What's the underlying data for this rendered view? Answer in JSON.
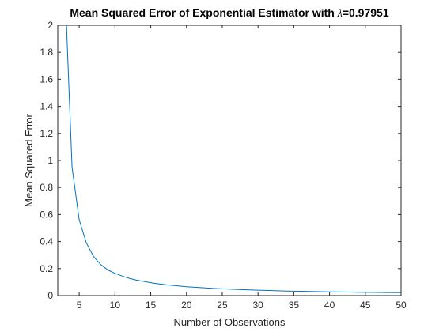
{
  "chart_data": {
    "type": "line",
    "title_prefix": "Mean Squared Error of Exponential Estimator with ",
    "title_symbol": "λ",
    "title_suffix": "=0.97951",
    "xlabel": "Number of Observations",
    "ylabel": "Mean Squared Error",
    "xlim": [
      2,
      50
    ],
    "ylim": [
      0,
      2
    ],
    "xticks": [
      5,
      10,
      15,
      20,
      25,
      30,
      35,
      40,
      45,
      50
    ],
    "yticks": [
      0,
      0.2,
      0.4,
      0.6,
      0.8,
      1,
      1.2,
      1.4,
      1.6,
      1.8,
      2
    ],
    "ytick_labels": [
      "0",
      "0.2",
      "0.4",
      "0.6",
      "0.8",
      "1",
      "1.2",
      "1.4",
      "1.6",
      "1.8",
      "2"
    ],
    "grid": false,
    "series": [
      {
        "color": "#0072bd",
        "x": [
          3,
          4,
          5,
          6,
          7,
          8,
          9,
          10,
          11,
          12,
          13,
          14,
          15,
          16,
          17,
          18,
          19,
          20,
          22,
          24,
          26,
          28,
          30,
          32,
          34,
          36,
          38,
          40,
          42,
          44,
          46,
          48,
          50
        ],
        "y": [
          2.3,
          0.95,
          0.56,
          0.39,
          0.29,
          0.23,
          0.19,
          0.165,
          0.145,
          0.128,
          0.115,
          0.105,
          0.096,
          0.088,
          0.081,
          0.076,
          0.071,
          0.066,
          0.059,
          0.053,
          0.048,
          0.044,
          0.04,
          0.037,
          0.034,
          0.032,
          0.03,
          0.028,
          0.027,
          0.025,
          0.024,
          0.023,
          0.022
        ]
      }
    ]
  }
}
